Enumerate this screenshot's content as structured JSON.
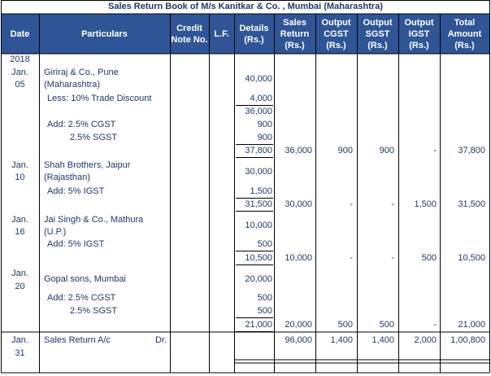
{
  "title": "Sales Return Book of M/s Kanitkar & Co. , Mumbai (Maharashtra)",
  "headers": [
    "Date",
    "Particulars",
    "Credit Note No.",
    "L.F.",
    "Details (Rs.)",
    "Sales Return (Rs.)",
    "Output CGST (Rs.)",
    "Output SGST (Rs.)",
    "Output IGST (Rs.)",
    "Total Amount (Rs.)"
  ],
  "lines": [
    {
      "date": "2018"
    },
    {
      "date": "Jan.",
      "particulars": "Giriraj & Co., Pune"
    },
    {
      "details": "40,000"
    },
    {
      "date": "05",
      "particulars": "(Maharashtra)"
    },
    {
      "particulars": "Less: 10% Trade Discount",
      "details": "4,000"
    },
    {
      "details": "36,000"
    },
    {
      "particulars": "Add: 2.5% CGST",
      "details": "900"
    },
    {
      "particulars": "2.5% SGST",
      "details": "900"
    },
    {
      "details": "37,800",
      "sales": "36,000",
      "cgst": "900",
      "sgst": "900",
      "igst": "-",
      "total": "37,800"
    },
    {
      "date": "Jan.",
      "particulars": "Shah Brothers, Jaipur"
    },
    {
      "details": "30,000"
    },
    {
      "date": "10",
      "particulars": "(Rajasthan)"
    },
    {
      "particulars": "Add: 5% IGST",
      "details": "1,500"
    },
    {
      "details": "31,500",
      "sales": "30,000",
      "cgst": "-",
      "sgst": "-",
      "igst": "1,500",
      "total": "31,500"
    },
    {
      "date": "Jan.",
      "particulars": "Jai Singh & Co., Mathura"
    },
    {
      "details": "10,000"
    },
    {
      "date": "16",
      "particulars": "(U.P.)"
    },
    {
      "particulars": "Add: 5% IGST",
      "details": "500"
    },
    {
      "details": "10,500",
      "sales": "10,000",
      "cgst": "-",
      "sgst": "-",
      "igst": "500",
      "total": "10,500"
    },
    {
      "date": "Jan."
    },
    {
      "particulars": "Gopal sons, Mumbai",
      "details": "20,000"
    },
    {
      "date": "20"
    },
    {
      "particulars": "Add: 2.5% CGST",
      "details": "500"
    },
    {
      "particulars": "2.5% SGST",
      "details": "500"
    },
    {
      "details": "21,000",
      "sales": "20,000",
      "cgst": "500",
      "sgst": "500",
      "igst": "-",
      "total": "21,000"
    },
    {
      "date": "Jan.",
      "particulars": "Sales Return A/c",
      "dr": "Dr.",
      "sales": "96,000",
      "cgst": "1,400",
      "sgst": "1,400",
      "igst": "2,000",
      "total": "1,00,800"
    },
    {
      "date": "31"
    }
  ]
}
